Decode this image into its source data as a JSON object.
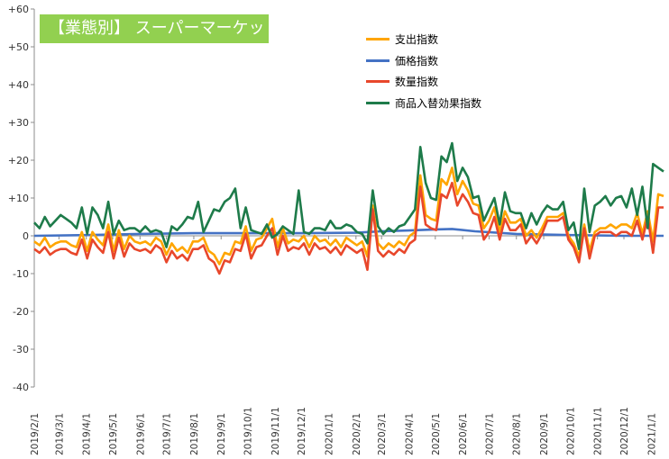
{
  "chart_data": {
    "type": "line",
    "title": "【業態別】 スーパーマーケット",
    "xlabel": "",
    "ylabel": "",
    "ylim": [
      -40,
      60
    ],
    "y_ticks": [
      "+60",
      "+50",
      "+40",
      "+30",
      "+20",
      "+10",
      "0",
      "-10",
      "-20",
      "-30",
      "-40"
    ],
    "x_start": "2019-02-01",
    "x_end": "2021-01-15",
    "x_ticks": [
      "2019/2/1",
      "2019/3/1",
      "2019/4/1",
      "2019/5/1",
      "2019/6/1",
      "2019/7/1",
      "2019/8/1",
      "2019/9/1",
      "2019/10/1",
      "2019/11/1",
      "2019/12/1",
      "2020/1/1",
      "2020/2/1",
      "2020/3/1",
      "2020/4/1",
      "2020/5/1",
      "2020/6/1",
      "2020/7/1",
      "2020/8/1",
      "2020/9/1",
      "2020/10/1",
      "2020/11/1",
      "2020/12/1",
      "2021/1/1"
    ],
    "grid": false,
    "legend_position": "top-center",
    "series": [
      {
        "name": "支出指数",
        "color": "#ffa500",
        "values": [
          -1.5,
          -2.5,
          -0.5,
          -3,
          -2,
          -1.5,
          -1.5,
          -2.5,
          -3,
          1,
          -4,
          1,
          -1,
          -2.5,
          3,
          -4,
          1.5,
          -3.5,
          0,
          -1.5,
          -2,
          -1.5,
          -2.5,
          -0.5,
          -1.5,
          -5,
          -2,
          -4,
          -3,
          -4.5,
          -1.5,
          -1.5,
          -0.5,
          -4,
          -5,
          -7.5,
          -4.5,
          -5,
          -1.5,
          -2,
          2.5,
          -4,
          -1,
          -0.5,
          2,
          4.5,
          -3,
          2,
          -2,
          -1,
          -1.5,
          0,
          -3,
          0,
          -1.5,
          -1,
          -2.5,
          -1,
          -3,
          -0.5,
          -1.5,
          -2.5,
          -1.5,
          -5.5,
          8,
          -2,
          -3.5,
          -2,
          -3,
          -1.5,
          -2.5,
          0,
          1,
          16,
          5.5,
          4.5,
          4,
          15,
          13.5,
          18,
          11,
          14.5,
          12,
          8.5,
          8,
          2,
          4,
          7.5,
          1,
          6.5,
          3.5,
          3.5,
          4.5,
          0,
          1.5,
          -0.5,
          2,
          5,
          5,
          5,
          6,
          0,
          -2,
          -5.5,
          3,
          -4,
          1,
          2,
          2,
          3,
          2,
          3,
          3,
          2,
          6,
          0.5,
          6.5,
          -1.5,
          11,
          10.5
        ],
        "points": [
          "2019-02-01:-1.5",
          "2019-02-07:-2.5",
          "2019-02-13:-0.5",
          "2019-02-19:-3",
          "2019-02-25:-2",
          "2019-03-03:-1.5",
          "2019-03-09:-1.5",
          "2019-03-15:-2.5",
          "2019-03-21:-3",
          "2019-03-27:1",
          "2019-04-02:-4",
          "2019-04-08:1",
          "2019-04-14:-1",
          "2019-04-20:-2.5",
          "2019-04-26:3",
          "2019-05-02:-4",
          "2019-05-08:1.5",
          "2019-05-14:-3.5",
          "2019-05-20:0",
          "2019-05-26:-1.5",
          "2019-06-01:-2",
          "2019-06-07:-1.5",
          "2019-06-13:-2.5",
          "2019-06-19:-0.5",
          "2019-06-25:-1.5",
          "2019-07-01:-5",
          "2019-07-07:-2",
          "2019-07-13:-4",
          "2019-07-19:-3",
          "2019-07-25:-4.5",
          "2019-07-31:-1.5",
          "2019-08-06:-1.5",
          "2019-08-12:-0.5",
          "2019-08-18:-4",
          "2019-08-24:-5",
          "2019-08-30:-7.5",
          "2019-09-05:-4.5",
          "2019-09-11:-5",
          "2019-09-17:-1.5",
          "2019-09-23:-2",
          "2019-09-29:2.5",
          "2019-10-05:-4",
          "2019-10-11:-1",
          "2019-10-17:-0.5",
          "2019-10-23:2",
          "2019-10-29:4.5",
          "2019-11-04:-3",
          "2019-11-10:2",
          "2019-11-16:-2",
          "2019-11-22:-1",
          "2019-11-28:-1.5",
          "2019-12-04:0",
          "2019-12-10:-3",
          "2019-12-16:0",
          "2019-12-22:-1.5",
          "2019-12-28:-1",
          "2020-01-03:-2.5",
          "2020-01-09:-1",
          "2020-01-15:-3",
          "2020-01-21:-0.5",
          "2020-01-27:-1.5",
          "2020-02-02:-2.5",
          "2020-02-08:-1.5",
          "2020-02-14:-5.5",
          "2020-02-20:8",
          "2020-02-26:-2",
          "2020-03-03:-3.5",
          "2020-03-09:-2",
          "2020-03-15:-3",
          "2020-03-21:-1.5",
          "2020-03-27:-2.5",
          "2020-04-02:0",
          "2020-04-08:1",
          "2020-04-14:16",
          "2020-04-20:5.5",
          "2020-04-26:4.5",
          "2020-05-02:4",
          "2020-05-08:15",
          "2020-05-14:13.5",
          "2020-05-20:18",
          "2020-05-26:11",
          "2020-06-01:14.5",
          "2020-06-07:12",
          "2020-06-13:8.5",
          "2020-06-19:8",
          "2020-06-25:2",
          "2020-07-01:4",
          "2020-07-07:7.5",
          "2020-07-13:1",
          "2020-07-19:6.5",
          "2020-07-25:3.5",
          "2020-07-31:3.5",
          "2020-08-06:4.5",
          "2020-08-12:0",
          "2020-08-18:1.5",
          "2020-08-24:-0.5",
          "2020-08-30:2",
          "2020-09-05:5",
          "2020-09-11:5",
          "2020-09-17:5",
          "2020-09-23:6",
          "2020-09-29:0",
          "2020-10-05:-2",
          "2020-10-11:-5.5",
          "2020-10-17:3",
          "2020-10-23:-4",
          "2020-10-29:1",
          "2020-11-04:2",
          "2020-11-10:2",
          "2020-11-16:3",
          "2020-11-22:2",
          "2020-11-28:3",
          "2020-12-04:3",
          "2020-12-10:2",
          "2020-12-16:6",
          "2020-12-22:0.5",
          "2020-12-28:6.5",
          "2021-01-03:-1.5",
          "2021-01-09:11",
          "2021-01-15:10.5"
        ]
      },
      {
        "name": "価格指数",
        "color": "#4472c4",
        "points": [
          "2019-02-01:0",
          "2019-04-01:0.2",
          "2019-06-01:0.5",
          "2019-08-01:0.7",
          "2019-10-01:0.7",
          "2019-12-01:0.7",
          "2020-02-01:0.8",
          "2020-03-01:1.2",
          "2020-04-01:1.4",
          "2020-05-01:1.7",
          "2020-05-20:1.8",
          "2020-06-15:1.2",
          "2020-08-01:0.5",
          "2020-10-01:0.2",
          "2020-12-01:0",
          "2021-01-15:0"
        ]
      },
      {
        "name": "数量指数",
        "color": "#e8472b",
        "points": [
          "2019-02-01:-3.5",
          "2019-02-07:-4.5",
          "2019-02-13:-3",
          "2019-02-19:-5",
          "2019-02-25:-4",
          "2019-03-03:-3.5",
          "2019-03-09:-3.5",
          "2019-03-15:-4.5",
          "2019-03-21:-5",
          "2019-03-27:-1",
          "2019-04-02:-6",
          "2019-04-08:-1",
          "2019-04-14:-3",
          "2019-04-20:-4.5",
          "2019-04-26:1",
          "2019-05-02:-6",
          "2019-05-08:-0.5",
          "2019-05-14:-5.5",
          "2019-05-20:-2",
          "2019-05-26:-3.5",
          "2019-06-01:-4",
          "2019-06-07:-3.5",
          "2019-06-13:-4.5",
          "2019-06-19:-2.5",
          "2019-06-25:-3.5",
          "2019-07-01:-7",
          "2019-07-07:-4",
          "2019-07-13:-6",
          "2019-07-19:-5",
          "2019-07-25:-6.5",
          "2019-07-31:-3.5",
          "2019-08-06:-3.5",
          "2019-08-12:-2.5",
          "2019-08-18:-6",
          "2019-08-24:-7",
          "2019-08-30:-10",
          "2019-09-05:-6.5",
          "2019-09-11:-7",
          "2019-09-17:-3.5",
          "2019-09-23:-4",
          "2019-09-29:0.5",
          "2019-10-05:-6",
          "2019-10-11:-3",
          "2019-10-17:-2.5",
          "2019-10-23:0",
          "2019-10-29:2",
          "2019-11-04:-5",
          "2019-11-10:0",
          "2019-11-16:-4",
          "2019-11-22:-3",
          "2019-11-28:-3.5",
          "2019-12-04:-2",
          "2019-12-10:-5",
          "2019-12-16:-2",
          "2019-12-22:-3.5",
          "2019-12-28:-3",
          "2020-01-03:-4.5",
          "2020-01-09:-3",
          "2020-01-15:-5",
          "2020-01-21:-2.5",
          "2020-01-27:-3.5",
          "2020-02-02:-4.5",
          "2020-02-08:-3.5",
          "2020-02-14:-9",
          "2020-02-20:7",
          "2020-02-26:-4",
          "2020-03-03:-5.5",
          "2020-03-09:-4",
          "2020-03-15:-5",
          "2020-03-21:-3.5",
          "2020-03-27:-4.5",
          "2020-04-02:-2",
          "2020-04-08:-1",
          "2020-04-14:13",
          "2020-04-20:3",
          "2020-04-26:2",
          "2020-05-02:1.5",
          "2020-05-08:11",
          "2020-05-14:10",
          "2020-05-20:14",
          "2020-05-26:8",
          "2020-06-01:11",
          "2020-06-07:9",
          "2020-06-13:6",
          "2020-06-19:5.5",
          "2020-06-25:-1",
          "2020-07-01:1",
          "2020-07-07:5",
          "2020-07-13:-1",
          "2020-07-19:4.5",
          "2020-07-25:1.5",
          "2020-07-31:1.5",
          "2020-08-06:3",
          "2020-08-12:-2",
          "2020-08-18:0",
          "2020-08-24:-2",
          "2020-08-30:0.5",
          "2020-09-05:4",
          "2020-09-11:4",
          "2020-09-17:4",
          "2020-09-23:5",
          "2020-09-29:-1",
          "2020-10-05:-3",
          "2020-10-11:-7",
          "2020-10-17:2",
          "2020-10-23:-6",
          "2020-10-29:0",
          "2020-11-04:1",
          "2020-11-10:1",
          "2020-11-16:1",
          "2020-11-22:0",
          "2020-11-28:1",
          "2020-12-04:1",
          "2020-12-10:0",
          "2020-12-16:4",
          "2020-12-22:-1",
          "2020-12-28:5",
          "2021-01-03:-4.5",
          "2021-01-09:7.5",
          "2021-01-15:7.5"
        ]
      },
      {
        "name": "商品入替効果指数",
        "color": "#1e7b4a",
        "points": [
          "2019-02-01:3.5",
          "2019-02-07:2",
          "2019-02-13:5",
          "2019-02-19:2.5",
          "2019-02-25:4",
          "2019-03-03:5.5",
          "2019-03-09:4.5",
          "2019-03-15:3.5",
          "2019-03-21:2",
          "2019-03-27:7.5",
          "2019-04-02:0.5",
          "2019-04-08:7.5",
          "2019-04-14:5.5",
          "2019-04-20:2",
          "2019-04-26:9",
          "2019-05-02:0.5",
          "2019-05-08:4",
          "2019-05-14:1.5",
          "2019-05-20:2",
          "2019-05-26:2",
          "2019-06-01:1",
          "2019-06-07:2.5",
          "2019-06-13:1",
          "2019-06-19:1.5",
          "2019-06-25:1",
          "2019-07-01:-3",
          "2019-07-07:2.5",
          "2019-07-13:1.5",
          "2019-07-19:3",
          "2019-07-25:5",
          "2019-07-31:4.5",
          "2019-08-06:9",
          "2019-08-12:1",
          "2019-08-18:4",
          "2019-08-24:7",
          "2019-08-30:6.5",
          "2019-09-05:9",
          "2019-09-11:10",
          "2019-09-17:12.5",
          "2019-09-23:2",
          "2019-09-29:7.5",
          "2019-10-05:1.5",
          "2019-10-11:1",
          "2019-10-17:0.5",
          "2019-10-23:3",
          "2019-10-29:-0.5",
          "2019-11-04:0.5",
          "2019-11-10:2.5",
          "2019-11-16:1.5",
          "2019-11-22:0.5",
          "2019-11-28:12",
          "2019-12-04:1",
          "2019-12-10:0.5",
          "2019-12-16:2",
          "2019-12-22:2",
          "2019-12-28:1.5",
          "2020-01-03:4",
          "2020-01-09:2",
          "2020-01-15:2",
          "2020-01-21:3",
          "2020-01-27:2.5",
          "2020-02-02:1",
          "2020-02-08:0.5",
          "2020-02-14:-2",
          "2020-02-20:12",
          "2020-02-26:2.5",
          "2020-03-03:0.5",
          "2020-03-09:2",
          "2020-03-15:1",
          "2020-03-21:2.5",
          "2020-03-27:3",
          "2020-04-02:5",
          "2020-04-08:7",
          "2020-04-14:23.5",
          "2020-04-20:14",
          "2020-04-26:10",
          "2020-05-02:9.5",
          "2020-05-08:21",
          "2020-05-14:19.5",
          "2020-05-20:24.5",
          "2020-05-26:14.5",
          "2020-06-01:18",
          "2020-06-07:15.5",
          "2020-06-13:10",
          "2020-06-19:10.5",
          "2020-06-25:4",
          "2020-07-01:7",
          "2020-07-07:10",
          "2020-07-13:3",
          "2020-07-19:11.5",
          "2020-07-25:6.5",
          "2020-07-31:6",
          "2020-08-06:6",
          "2020-08-12:2",
          "2020-08-18:6",
          "2020-08-24:3",
          "2020-08-30:6",
          "2020-09-05:8",
          "2020-09-11:7",
          "2020-09-17:7",
          "2020-09-23:9",
          "2020-09-29:1.5",
          "2020-10-05:3.5",
          "2020-10-11:-3.5",
          "2020-10-17:12.5",
          "2020-10-23:1",
          "2020-10-29:8",
          "2020-11-04:9",
          "2020-11-10:10.5",
          "2020-11-16:8",
          "2020-11-22:10",
          "2020-11-28:10.5",
          "2020-12-04:7.5",
          "2020-12-10:12.5",
          "2020-12-16:5.5",
          "2020-12-22:13",
          "2020-12-28:2",
          "2021-01-03:19",
          "2021-01-09:18",
          "2021-01-15:17"
        ]
      }
    ]
  }
}
